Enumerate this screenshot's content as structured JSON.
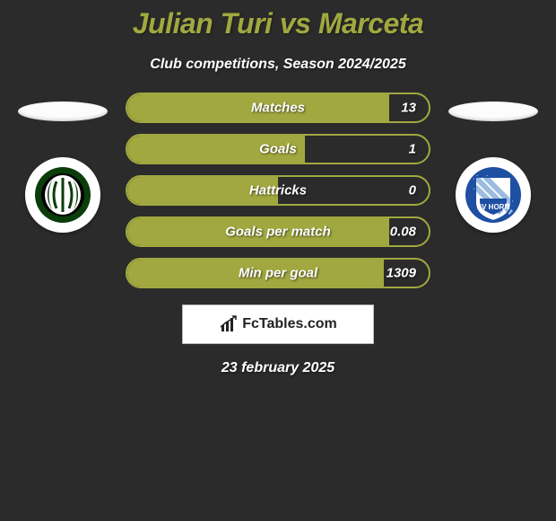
{
  "title": "Julian Turi vs Marceta",
  "subtitle": "Club competitions, Season 2024/2025",
  "footer_date": "23 february 2025",
  "brand": {
    "text": "FcTables.com"
  },
  "colors": {
    "accent": "#a1a83f",
    "bg": "#2b2b2b",
    "text": "#ffffff",
    "brand_bg": "#ffffff"
  },
  "left_club": {
    "name": "SV Ried",
    "badge_bg": "#ffffff",
    "badge_inner": "#0a3d0a",
    "badge_accent": "#ffffff"
  },
  "right_club": {
    "name": "SV Horn",
    "badge_bg": "#ffffff",
    "badge_inner": "#1e4fa3",
    "badge_accent": "#ffffff",
    "badge_text": "SV HORN"
  },
  "stats": [
    {
      "label": "Matches",
      "value": "13",
      "fill_pct": 87
    },
    {
      "label": "Goals",
      "value": "1",
      "fill_pct": 59
    },
    {
      "label": "Hattricks",
      "value": "0",
      "fill_pct": 50
    },
    {
      "label": "Goals per match",
      "value": "0.08",
      "fill_pct": 87
    },
    {
      "label": "Min per goal",
      "value": "1309",
      "fill_pct": 85
    }
  ]
}
